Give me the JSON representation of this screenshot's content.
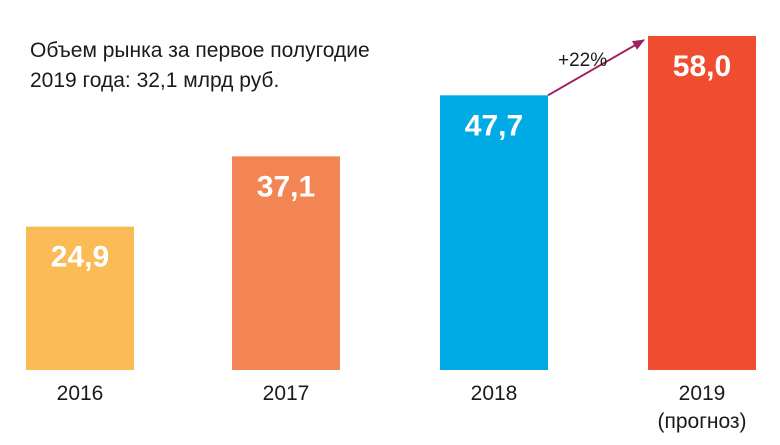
{
  "note": {
    "line1": "Объем рынка за первое полугодие",
    "line2": "2019 года: 32,1 млрд руб."
  },
  "chart_data": {
    "type": "bar",
    "categories": [
      "2016",
      "2017",
      "2018",
      "2019"
    ],
    "category_sublabels": [
      "",
      "",
      "",
      "(прогноз)"
    ],
    "values": [
      24.9,
      37.1,
      47.7,
      58.0
    ],
    "value_labels": [
      "24,9",
      "37,1",
      "47,7",
      "58,0"
    ],
    "colors": [
      "#FBBC57",
      "#F28553",
      "#00AAE4",
      "#F04D30"
    ],
    "annotation": {
      "text": "+22%",
      "from": "2018",
      "to": "2019",
      "color": "#A0205A"
    },
    "title": "",
    "xlabel": "",
    "ylabel": "",
    "ylim": [
      0,
      58.0
    ],
    "grid": false,
    "legend": "none"
  }
}
